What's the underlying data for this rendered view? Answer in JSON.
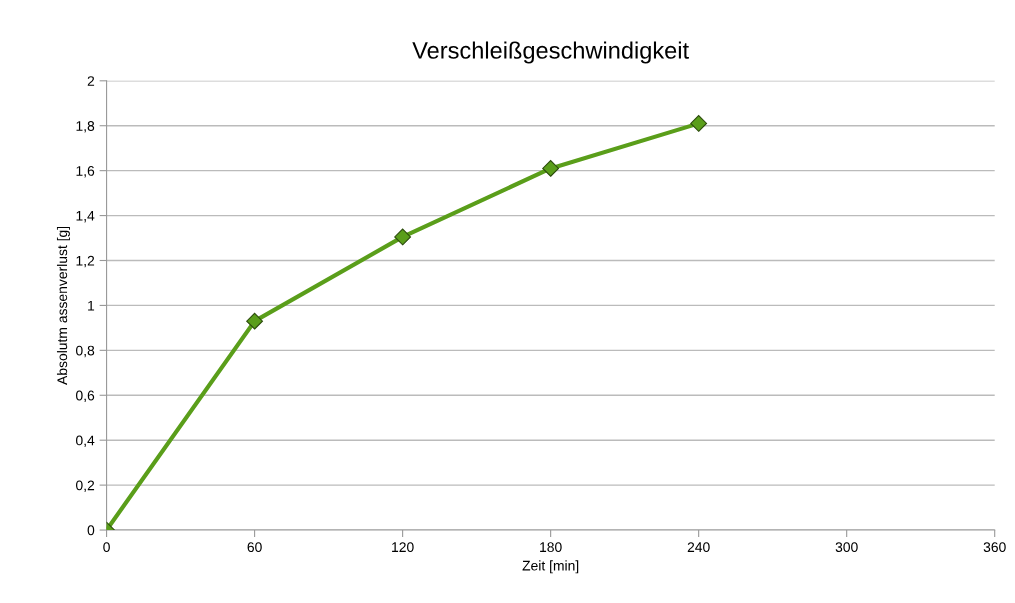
{
  "chart_data": {
    "type": "line",
    "title": "Verschleißgeschwindigkeit",
    "xlabel": "Zeit [min]",
    "ylabel": "Absolutm assenverlust [g]",
    "x": [
      0,
      60,
      120,
      180,
      240
    ],
    "series": [
      {
        "color": "#5a9e1a",
        "values": [
          0,
          0.93,
          1.305,
          1.61,
          1.81
        ]
      }
    ],
    "marker": "diamond",
    "line_style": "solid",
    "grid": "y",
    "xlim": [
      0,
      360
    ],
    "xticks": [
      0,
      60,
      120,
      180,
      240,
      300,
      360
    ],
    "ylim": [
      0,
      2
    ],
    "yticks": [
      0,
      {
        "value": 0.2,
        "label": "0,2"
      },
      {
        "value": 0.4,
        "label": "0,4"
      },
      {
        "value": 0.6,
        "label": "0,6"
      },
      {
        "value": 0.8,
        "label": "0,8"
      },
      1,
      {
        "value": 1.2,
        "label": "1,2"
      },
      {
        "value": 1.4,
        "label": "1,4"
      },
      {
        "value": 1.6,
        "label": "1,6"
      },
      {
        "value": 1.8,
        "label": "1,8"
      },
      2
    ]
  }
}
